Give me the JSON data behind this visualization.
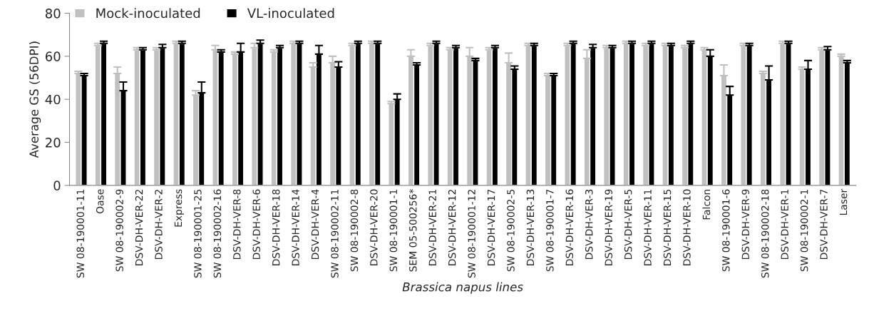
{
  "chart_data": {
    "type": "bar",
    "xlabel": "Brassica napus lines",
    "ylabel": "Average GS (56DPI)",
    "categories": [
      "SW 08-190001-11",
      "Oase",
      "SW 08-190002-9",
      "DSV-DH-VER-22",
      "DSV-DH-VER-2",
      "Express",
      "SW 08-190001-25",
      "SW 08-190002-16",
      "DSV-DH-VER-8",
      "DSV-DH-VER-6",
      "DSV-DH-VER-18",
      "DSV-DH-VER-14",
      "DSV-DH-VER-4",
      "SW 08-190002-11",
      "SW 08-190002-8",
      "DSV-DH-VER-20",
      "SW 08-190001-1",
      "SEM 05-500256*",
      "DSV-DH-VER-21",
      "DSV-DH-VER-12",
      "SW 08-190001-12",
      "DSV-DH-VER-17",
      "SW 08-190002-5",
      "DSV-DH-VER-13",
      "SW 08-190001-7",
      "DSV-DH-VER-16",
      "DSV-DH-VER-3",
      "DSV-DH-VER-19",
      "DSV-DH-VER-5",
      "DSV-DH-VER-11",
      "DSV-DH-VER-15",
      "DSV-DH-VER-10",
      "Falcon",
      "SW 08-190001-6",
      "DSV-DH-VER-9",
      "SW 08-190002-18",
      "DSV-DH-VER-1",
      "SW 08-190002-1",
      "DSV-DH-VER-7",
      "Laser"
    ],
    "series": [
      {
        "name": "Mock-inoculated",
        "color": "#c0c0c0",
        "values": [
          52,
          65,
          52,
          63,
          63,
          66,
          42,
          63,
          61,
          64,
          62,
          66,
          55,
          57,
          65,
          66,
          38,
          60,
          65,
          63,
          60,
          63,
          57,
          65,
          51,
          65,
          59,
          64,
          66,
          65,
          65,
          64,
          63,
          51,
          65,
          52,
          66,
          54,
          63,
          60
        ],
        "errors": [
          1,
          1,
          3,
          1,
          1,
          1,
          2,
          2,
          1,
          2,
          1,
          1,
          2,
          3,
          1,
          1,
          1,
          3,
          1,
          1,
          4,
          1,
          4.5,
          1,
          1,
          1,
          4,
          1,
          1,
          1,
          1,
          1,
          1,
          5,
          1,
          1,
          1,
          1,
          1,
          1
        ]
      },
      {
        "name": "VL-inoculated",
        "color": "#000000",
        "values": [
          51,
          66,
          44,
          63,
          64,
          66,
          43,
          62,
          62,
          66,
          64,
          66,
          61,
          55,
          66,
          66,
          40,
          56,
          66,
          64,
          58,
          64,
          54,
          65,
          51,
          66,
          64,
          64,
          66,
          66,
          65,
          66,
          60,
          42,
          65,
          49,
          66,
          54,
          63,
          57
        ],
        "errors": [
          1,
          1,
          4,
          1,
          1.5,
          1,
          5,
          1,
          4,
          1.5,
          1,
          1,
          4,
          2.5,
          1,
          1,
          2.5,
          1,
          1,
          1,
          1,
          1,
          1.5,
          1,
          1,
          1,
          1.5,
          1,
          1,
          1,
          1,
          1,
          3,
          4,
          1,
          6.5,
          1,
          4,
          1.5,
          1
        ]
      }
    ],
    "ylim": [
      0,
      80
    ],
    "yticks": [
      0,
      20,
      40,
      60,
      80
    ],
    "grid": false,
    "legend": "top left"
  }
}
